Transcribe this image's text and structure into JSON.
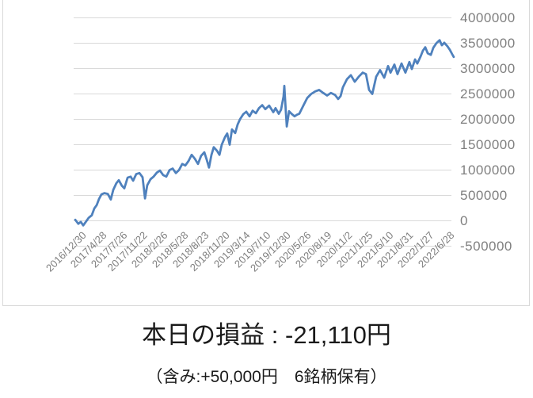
{
  "chart_data": {
    "type": "line",
    "title": "",
    "legend": "none",
    "grid": true,
    "y_axis_position": "right",
    "y_ticks": [
      4000000,
      3500000,
      3000000,
      2500000,
      2000000,
      1500000,
      1000000,
      500000,
      0,
      -500000
    ],
    "ylim": [
      -500000,
      4000000
    ],
    "x_tick_labels": [
      "2016/12/30",
      "2017/4/28",
      "2017/7/26",
      "2017/11/22",
      "2018/2/26",
      "2018/5/28",
      "2018/8/23",
      "2018/11/20",
      "2019/3/14",
      "2019/7/10",
      "2019/12/30",
      "2020/5/26",
      "2020/8/19",
      "2020/11/2",
      "2021/1/25",
      "2021/5/10",
      "2021/8/31",
      "2022/1/27",
      "2022/6/28"
    ],
    "x_axis_note": "categorical daily equity curve; point t is measured in x-tick intervals (t=0 at 2016/12/30, t=18 at 2022/6/28, data continues slightly past last tick)",
    "line_color": "#4f81bd",
    "gridline_color": "#d9d9d9",
    "axis_label_color": "#7f7f7f",
    "chart_border_color": "#d9d9d9",
    "series": [
      {
        "points": [
          [
            0.0,
            20000
          ],
          [
            0.15,
            -60000
          ],
          [
            0.27,
            -20000
          ],
          [
            0.39,
            -90000
          ],
          [
            0.5,
            -30000
          ],
          [
            0.66,
            60000
          ],
          [
            0.81,
            110000
          ],
          [
            0.93,
            240000
          ],
          [
            1.05,
            310000
          ],
          [
            1.16,
            430000
          ],
          [
            1.28,
            520000
          ],
          [
            1.43,
            545000
          ],
          [
            1.59,
            530000
          ],
          [
            1.74,
            420000
          ],
          [
            1.86,
            610000
          ],
          [
            2.01,
            740000
          ],
          [
            2.13,
            800000
          ],
          [
            2.28,
            690000
          ],
          [
            2.4,
            640000
          ],
          [
            2.56,
            850000
          ],
          [
            2.71,
            870000
          ],
          [
            2.83,
            790000
          ],
          [
            2.98,
            920000
          ],
          [
            3.14,
            940000
          ],
          [
            3.29,
            860000
          ],
          [
            3.41,
            440000
          ],
          [
            3.52,
            700000
          ],
          [
            3.68,
            820000
          ],
          [
            3.83,
            870000
          ],
          [
            3.99,
            950000
          ],
          [
            4.14,
            990000
          ],
          [
            4.3,
            900000
          ],
          [
            4.45,
            870000
          ],
          [
            4.61,
            1000000
          ],
          [
            4.76,
            1030000
          ],
          [
            4.92,
            940000
          ],
          [
            5.07,
            1000000
          ],
          [
            5.23,
            1120000
          ],
          [
            5.38,
            1090000
          ],
          [
            5.54,
            1180000
          ],
          [
            5.69,
            1300000
          ],
          [
            5.85,
            1220000
          ],
          [
            6.0,
            1120000
          ],
          [
            6.15,
            1280000
          ],
          [
            6.31,
            1350000
          ],
          [
            6.43,
            1200000
          ],
          [
            6.54,
            1050000
          ],
          [
            6.66,
            1300000
          ],
          [
            6.77,
            1450000
          ],
          [
            6.93,
            1380000
          ],
          [
            7.05,
            1300000
          ],
          [
            7.16,
            1500000
          ],
          [
            7.32,
            1650000
          ],
          [
            7.43,
            1720000
          ],
          [
            7.55,
            1500000
          ],
          [
            7.66,
            1800000
          ],
          [
            7.82,
            1730000
          ],
          [
            7.94,
            1900000
          ],
          [
            8.05,
            2000000
          ],
          [
            8.21,
            2100000
          ],
          [
            8.36,
            2150000
          ],
          [
            8.52,
            2060000
          ],
          [
            8.67,
            2170000
          ],
          [
            8.83,
            2120000
          ],
          [
            8.98,
            2220000
          ],
          [
            9.14,
            2280000
          ],
          [
            9.29,
            2200000
          ],
          [
            9.48,
            2270000
          ],
          [
            9.68,
            2140000
          ],
          [
            9.79,
            2220000
          ],
          [
            9.95,
            2110000
          ],
          [
            10.06,
            2190000
          ],
          [
            10.18,
            2450000
          ],
          [
            10.22,
            2660000
          ],
          [
            10.3,
            2100000
          ],
          [
            10.34,
            1860000
          ],
          [
            10.45,
            2160000
          ],
          [
            10.57,
            2110000
          ],
          [
            10.72,
            2060000
          ],
          [
            10.84,
            2090000
          ],
          [
            10.95,
            2110000
          ],
          [
            11.15,
            2270000
          ],
          [
            11.34,
            2420000
          ],
          [
            11.53,
            2500000
          ],
          [
            11.73,
            2550000
          ],
          [
            11.92,
            2580000
          ],
          [
            12.12,
            2520000
          ],
          [
            12.31,
            2470000
          ],
          [
            12.5,
            2520000
          ],
          [
            12.7,
            2480000
          ],
          [
            12.85,
            2400000
          ],
          [
            12.97,
            2460000
          ],
          [
            13.08,
            2630000
          ],
          [
            13.28,
            2790000
          ],
          [
            13.47,
            2870000
          ],
          [
            13.66,
            2740000
          ],
          [
            13.86,
            2840000
          ],
          [
            14.05,
            2920000
          ],
          [
            14.21,
            2890000
          ],
          [
            14.36,
            2580000
          ],
          [
            14.52,
            2500000
          ],
          [
            14.71,
            2840000
          ],
          [
            14.9,
            2970000
          ],
          [
            15.1,
            2820000
          ],
          [
            15.29,
            3050000
          ],
          [
            15.41,
            2920000
          ],
          [
            15.6,
            3080000
          ],
          [
            15.75,
            2890000
          ],
          [
            15.95,
            3100000
          ],
          [
            16.14,
            2920000
          ],
          [
            16.33,
            3130000
          ],
          [
            16.45,
            2990000
          ],
          [
            16.61,
            3180000
          ],
          [
            16.72,
            3100000
          ],
          [
            16.88,
            3240000
          ],
          [
            16.99,
            3350000
          ],
          [
            17.11,
            3420000
          ],
          [
            17.23,
            3300000
          ],
          [
            17.38,
            3270000
          ],
          [
            17.5,
            3410000
          ],
          [
            17.65,
            3500000
          ],
          [
            17.81,
            3560000
          ],
          [
            17.92,
            3460000
          ],
          [
            18.04,
            3510000
          ],
          [
            18.19,
            3440000
          ],
          [
            18.31,
            3370000
          ],
          [
            18.43,
            3280000
          ],
          [
            18.5,
            3230000
          ]
        ]
      }
    ]
  },
  "caption": {
    "main": "本日の損益 : -21,110円",
    "sub": "（含み:+50,000円　6銘柄保有）"
  }
}
